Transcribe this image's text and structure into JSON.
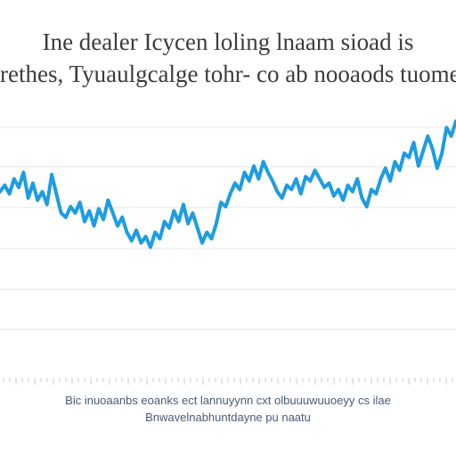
{
  "title": {
    "line1": "Ine dealer Icycen loling lnaam sioad is",
    "line2": "rethes, Tyuaulgcalge tohr- co ab nooaods tuome"
  },
  "caption": {
    "line1": "Bic inuoaanbs eoanks ect lannuyynn cxt olbuuuwuuoeyy cs ilae",
    "line2": "Bnwavelnabhuntdayne pu naatu"
  },
  "colors": {
    "line": "#1e9ce0",
    "grid": "#e6e6e6",
    "title": "#3c3c3c",
    "caption": "#4a5a78"
  },
  "chart_data": {
    "type": "line",
    "title": "Ine dealer Icycen loling lnaam sioad is rethes, Tyuaulgcalge tohr- co ab nooaods tuome",
    "xlabel": "",
    "ylabel": "",
    "grid": true,
    "series": [
      {
        "values": [
          52,
          55,
          51,
          58,
          54,
          61,
          49,
          56,
          48,
          52,
          46,
          60,
          51,
          42,
          40,
          45,
          42,
          47,
          38,
          43,
          36,
          44,
          39,
          48,
          42,
          36,
          40,
          33,
          29,
          34,
          28,
          31,
          26,
          33,
          30,
          38,
          35,
          43,
          38,
          46,
          37,
          42,
          35,
          28,
          33,
          30,
          37,
          47,
          45,
          51,
          56,
          53,
          61,
          57,
          64,
          58,
          66,
          61,
          57,
          52,
          49,
          55,
          53,
          58,
          51,
          59,
          57,
          62,
          58,
          54,
          56,
          50,
          53,
          48,
          55,
          52,
          58,
          49,
          45,
          53,
          51,
          58,
          63,
          57,
          66,
          62,
          70,
          68,
          75,
          64,
          71,
          78,
          72,
          63,
          70,
          82,
          78,
          85
        ]
      }
    ]
  }
}
